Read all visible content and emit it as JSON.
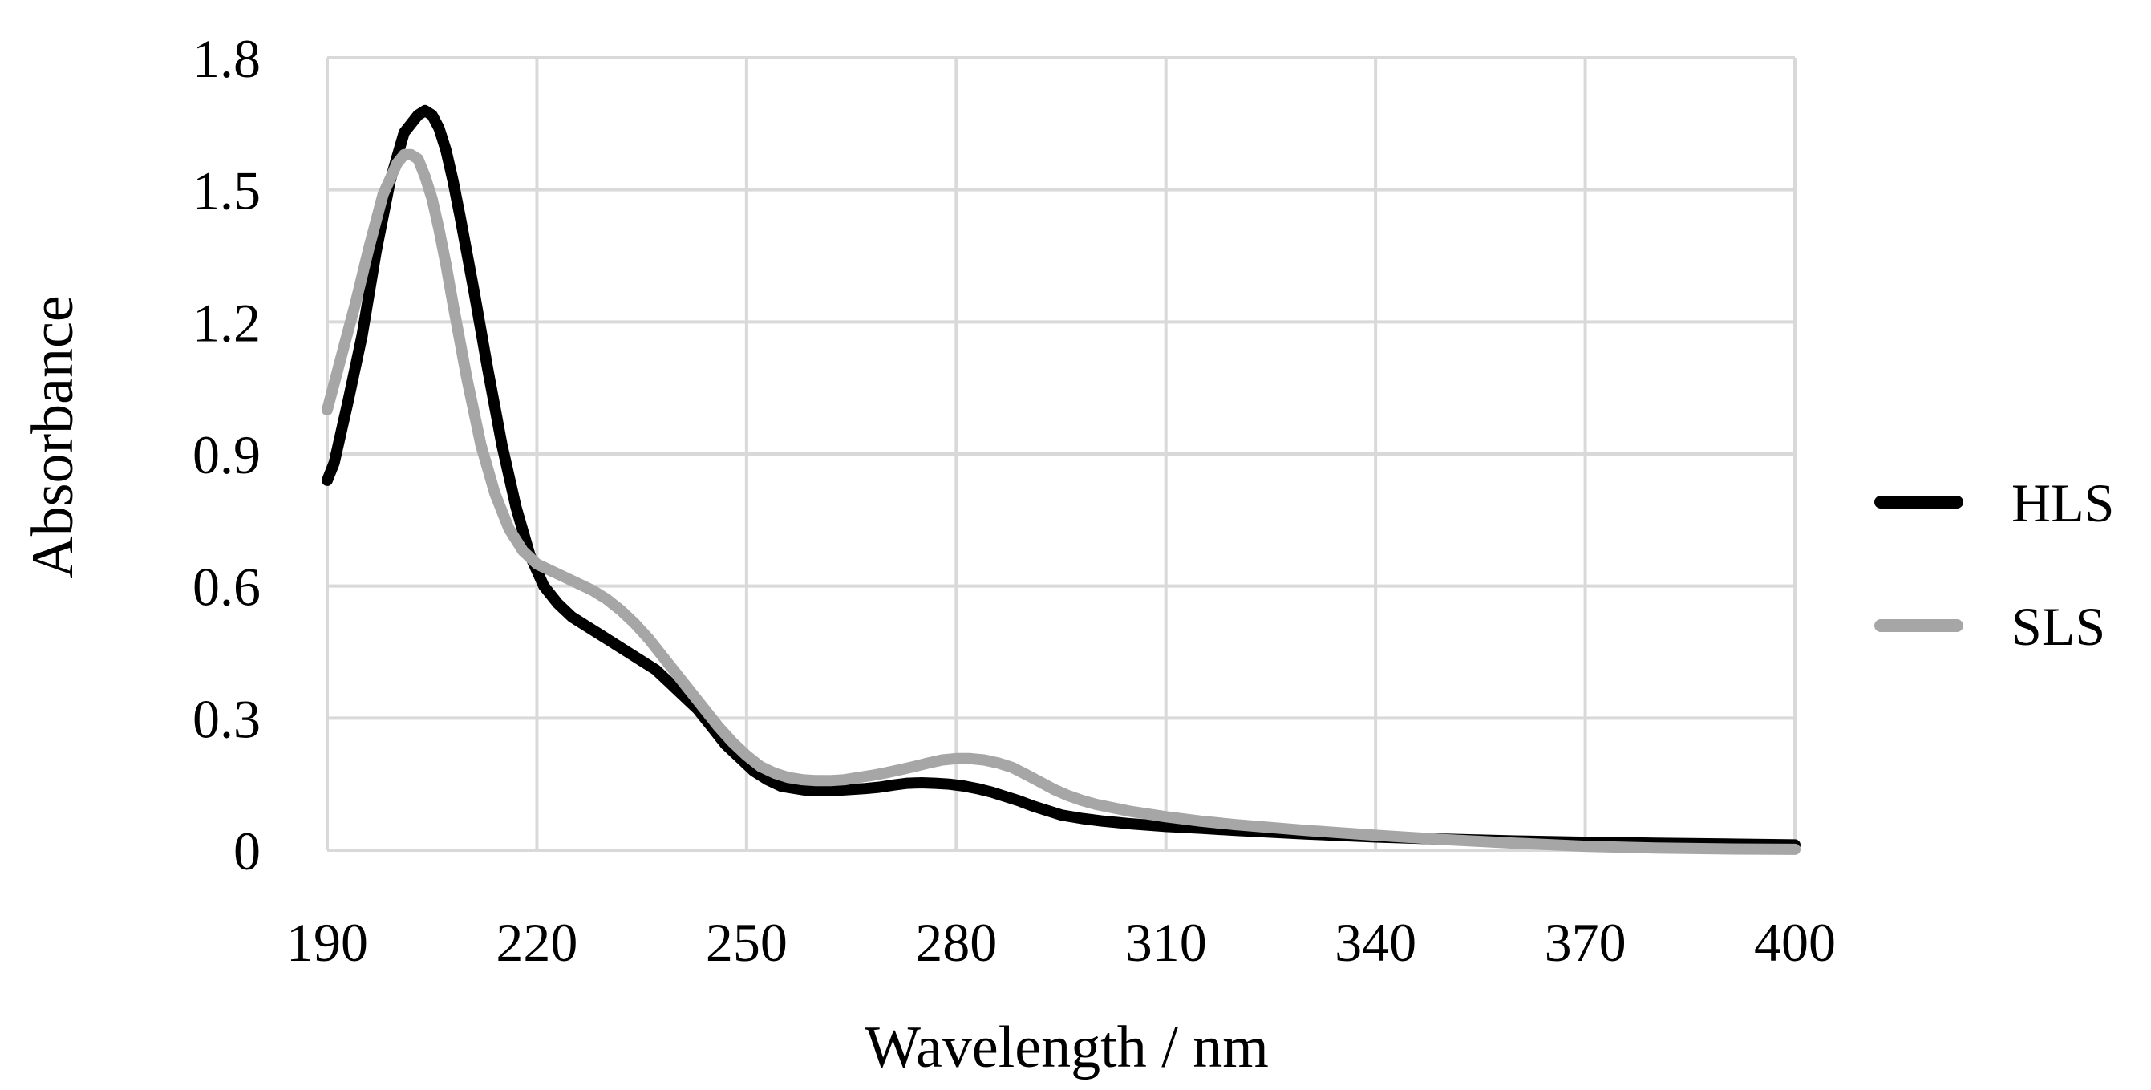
{
  "chart_data": {
    "type": "line",
    "title": "",
    "xlabel": "Wavelength / nm",
    "ylabel": "Absorbance",
    "xlim": [
      190,
      400
    ],
    "ylim": [
      0,
      1.8
    ],
    "x_ticks": [
      190,
      220,
      250,
      280,
      310,
      340,
      370,
      400
    ],
    "y_ticks": [
      0,
      0.3,
      0.6,
      0.9,
      1.2,
      1.5,
      1.8
    ],
    "x_tick_labels": [
      "190",
      "220",
      "250",
      "280",
      "310",
      "340",
      "370",
      "400"
    ],
    "y_tick_labels": [
      "0",
      "0.3",
      "0.6",
      "0.9",
      "1.2",
      "1.5",
      "1.8"
    ],
    "grid": true,
    "legend_position": "right",
    "series": [
      {
        "name": "HLS",
        "color": "#000000",
        "x": [
          190,
          191,
          192,
          193,
          195,
          197,
          199,
          201,
          203,
          204,
          205,
          206,
          207,
          208,
          209,
          211,
          213,
          215,
          217,
          219,
          221,
          223,
          225,
          227,
          229,
          231,
          233,
          235,
          237,
          239,
          241,
          243,
          245,
          247,
          249,
          251,
          253,
          255,
          257,
          259,
          261,
          263,
          265,
          267,
          269,
          271,
          273,
          275,
          277,
          279,
          281,
          283,
          285,
          287,
          289,
          291,
          293,
          295,
          298,
          301,
          305,
          310,
          315,
          320,
          325,
          330,
          340,
          350,
          360,
          370,
          380,
          390,
          400
        ],
        "y": [
          0.84,
          0.88,
          0.95,
          1.02,
          1.17,
          1.36,
          1.52,
          1.63,
          1.67,
          1.68,
          1.67,
          1.64,
          1.59,
          1.52,
          1.44,
          1.27,
          1.09,
          0.92,
          0.78,
          0.67,
          0.6,
          0.56,
          0.53,
          0.51,
          0.49,
          0.47,
          0.45,
          0.43,
          0.41,
          0.38,
          0.35,
          0.32,
          0.28,
          0.24,
          0.21,
          0.18,
          0.16,
          0.145,
          0.14,
          0.135,
          0.135,
          0.136,
          0.138,
          0.14,
          0.143,
          0.148,
          0.152,
          0.153,
          0.152,
          0.15,
          0.146,
          0.14,
          0.132,
          0.122,
          0.112,
          0.1,
          0.09,
          0.08,
          0.072,
          0.066,
          0.06,
          0.054,
          0.05,
          0.045,
          0.041,
          0.037,
          0.03,
          0.025,
          0.021,
          0.018,
          0.016,
          0.014,
          0.012
        ]
      },
      {
        "name": "SLS",
        "color": "#a6a6a6",
        "x": [
          190,
          192,
          194,
          196,
          198,
          200,
          201,
          202,
          203,
          204,
          205,
          206,
          207,
          208,
          210,
          212,
          214,
          216,
          218,
          220,
          222,
          224,
          226,
          228,
          230,
          232,
          234,
          236,
          238,
          240,
          242,
          244,
          246,
          248,
          250,
          252,
          254,
          256,
          258,
          260,
          262,
          264,
          266,
          268,
          270,
          272,
          274,
          276,
          278,
          280,
          282,
          284,
          286,
          288,
          290,
          292,
          294,
          296,
          298,
          300,
          305,
          310,
          315,
          320,
          330,
          340,
          350,
          360,
          370,
          380,
          390,
          400
        ],
        "y": [
          1.0,
          1.12,
          1.24,
          1.37,
          1.49,
          1.56,
          1.58,
          1.58,
          1.57,
          1.53,
          1.48,
          1.41,
          1.33,
          1.24,
          1.07,
          0.92,
          0.81,
          0.73,
          0.68,
          0.65,
          0.635,
          0.62,
          0.605,
          0.59,
          0.57,
          0.545,
          0.515,
          0.48,
          0.44,
          0.4,
          0.36,
          0.32,
          0.28,
          0.245,
          0.215,
          0.19,
          0.175,
          0.165,
          0.16,
          0.158,
          0.158,
          0.16,
          0.165,
          0.17,
          0.176,
          0.183,
          0.19,
          0.198,
          0.205,
          0.208,
          0.208,
          0.205,
          0.198,
          0.188,
          0.172,
          0.155,
          0.138,
          0.124,
          0.113,
          0.104,
          0.088,
          0.076,
          0.066,
          0.058,
          0.045,
          0.034,
          0.024,
          0.016,
          0.009,
          0.005,
          0.003,
          0.002
        ]
      }
    ]
  }
}
